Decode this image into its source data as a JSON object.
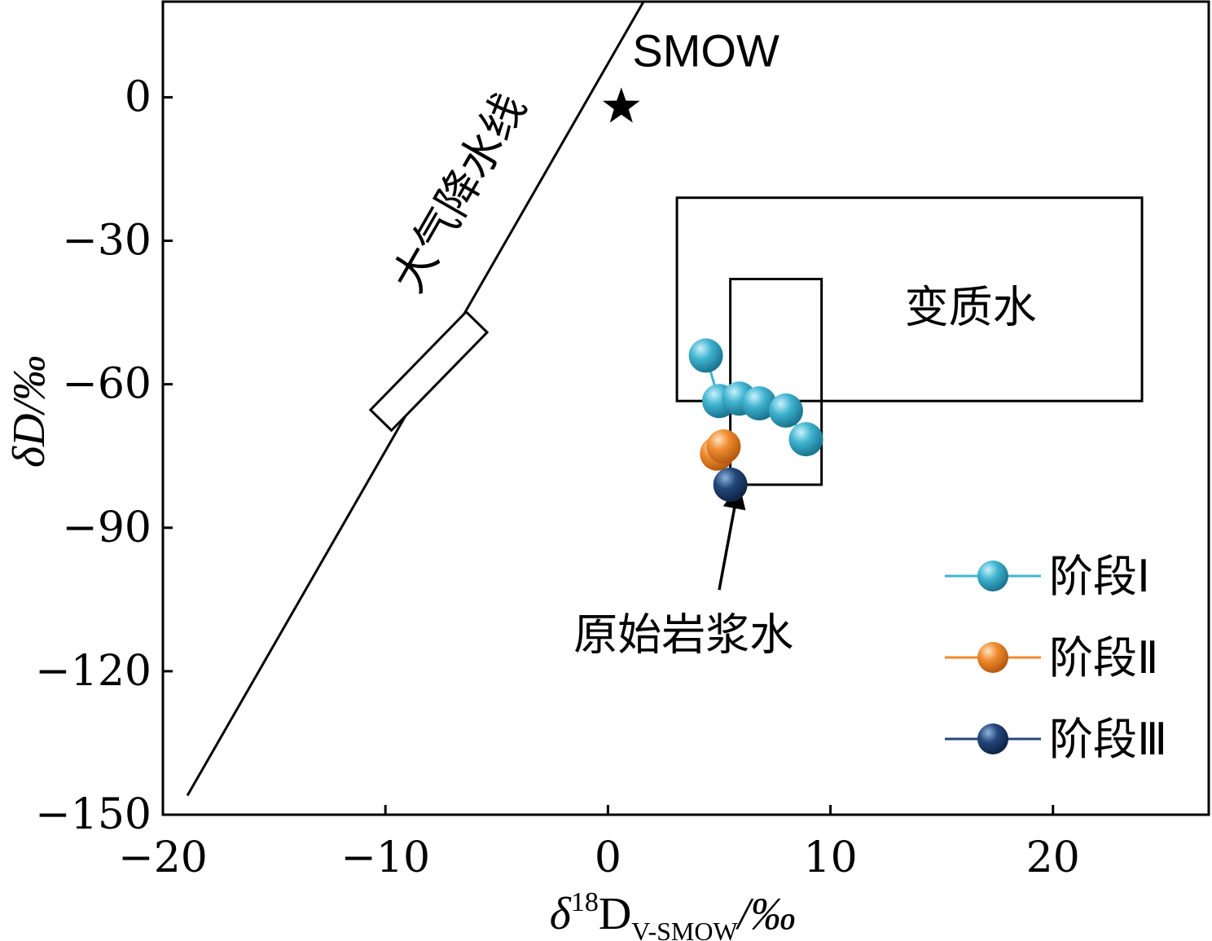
{
  "chart_data": {
    "type": "scatter",
    "title": "",
    "xlabel": {
      "prefix": "δ",
      "sup": "18",
      "main": "D",
      "sub": "V-SMOW",
      "suffix": "/‰"
    },
    "ylabel": "δD/‰",
    "xlim": [
      -20,
      27
    ],
    "ylim": [
      -150,
      20
    ],
    "x_ticks": [
      -20,
      -10,
      0,
      10,
      20
    ],
    "y_ticks": [
      0,
      -30,
      -60,
      -90,
      -120,
      -150
    ],
    "grid": false,
    "legend_position": "bottom-right",
    "series": [
      {
        "name": "阶段Ⅰ",
        "color": "#3fb3cf",
        "points": [
          [
            4.4,
            -54
          ],
          [
            5,
            -63.5
          ],
          [
            5.9,
            -63
          ],
          [
            6.8,
            -64
          ],
          [
            8,
            -65.5
          ],
          [
            8.9,
            -71.5
          ]
        ]
      },
      {
        "name": "阶段Ⅱ",
        "color": "#ee8a2e",
        "points": [
          [
            4.9,
            -74.5
          ],
          [
            5.2,
            -73
          ]
        ]
      },
      {
        "name": "阶段Ⅲ",
        "color": "#23477a",
        "points": [
          [
            5.5,
            -81
          ]
        ]
      }
    ],
    "meteoric_line": {
      "label": "大气降水线",
      "from": [
        -18.9,
        -146
      ],
      "to": [
        1.6,
        20
      ]
    },
    "meteoric_box": {
      "x1": -10.2,
      "y1": -67.5,
      "x2": -5.9,
      "y2": -47
    },
    "smow": {
      "label": "SMOW",
      "point": [
        0.6,
        -2
      ]
    },
    "metamorphic_water": {
      "label": "变质水",
      "box": {
        "x1": 3.1,
        "x2": 24,
        "y1": -63.5,
        "y2": -21
      }
    },
    "magmatic_water": {
      "label": "原始岩浆水",
      "box": {
        "x1": 5.5,
        "x2": 9.6,
        "y1": -81,
        "y2": -38
      },
      "arrow_from": [
        5,
        -103
      ],
      "arrow_to": [
        5.8,
        -83
      ]
    }
  }
}
